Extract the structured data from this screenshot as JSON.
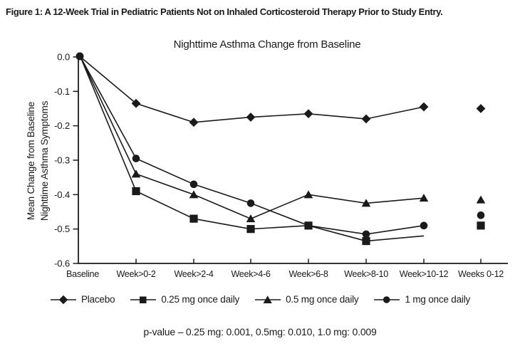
{
  "figure_caption": "Figure 1: A 12-Week Trial in Pediatric Patients Not on Inhaled Corticosteroid Therapy Prior to Study Entry.",
  "chart_data": {
    "type": "line",
    "title": "Nighttime Asthma Change from Baseline",
    "ylabel_lines": [
      "Mean Change from Baseline",
      "Nighttime Asthma Symptoms"
    ],
    "xlabel": "",
    "categories": [
      "Baseline",
      "Week>0-2",
      "Week>2-4",
      "Week>4-6",
      "Week>6-8",
      "Week>8-10",
      "Week>10-12",
      "Weeks 0-12"
    ],
    "ylim": [
      -0.6,
      0.0
    ],
    "yticks": [
      0.0,
      -0.1,
      -0.2,
      -0.3,
      -0.4,
      -0.5,
      -0.6
    ],
    "ytick_labels": [
      "0.0",
      "-0.1",
      "-0.2",
      "-0.3",
      "-0.4",
      "-0.5",
      "-0.6"
    ],
    "grid": false,
    "legend_position": "bottom",
    "last_column_disconnected": true,
    "series": [
      {
        "name": "Placebo",
        "marker": "diamond",
        "values": [
          0,
          -0.135,
          -0.19,
          -0.175,
          -0.165,
          -0.18,
          -0.145,
          -0.15
        ]
      },
      {
        "name": "1 mg once daily",
        "marker": "circle",
        "values": [
          0,
          -0.295,
          -0.37,
          -0.425,
          -0.49,
          -0.515,
          -0.49,
          -0.46
        ]
      },
      {
        "name": "0.5 mg once daily",
        "marker": "triangle",
        "values": [
          0,
          -0.34,
          -0.4,
          -0.47,
          -0.4,
          -0.425,
          -0.41,
          -0.415
        ]
      },
      {
        "name": "0.25 mg once daily",
        "marker": "square",
        "values": [
          0,
          -0.39,
          -0.47,
          -0.5,
          -0.49,
          -0.535,
          -0.52,
          -0.49
        ],
        "skip_marker_indices": [
          6
        ]
      }
    ],
    "colors": {
      "line": "#1a1a1a",
      "text": "#1a1a1a"
    }
  },
  "legend": {
    "items": [
      {
        "label": "Placebo",
        "marker": "diamond"
      },
      {
        "label": "0.25 mg once daily",
        "marker": "square"
      },
      {
        "label": "0.5 mg once daily",
        "marker": "triangle"
      },
      {
        "label": "1 mg once daily",
        "marker": "circle"
      }
    ]
  },
  "footnote": "p-value – 0.25 mg: 0.001, 0.5mg: 0.010, 1.0 mg: 0.009"
}
